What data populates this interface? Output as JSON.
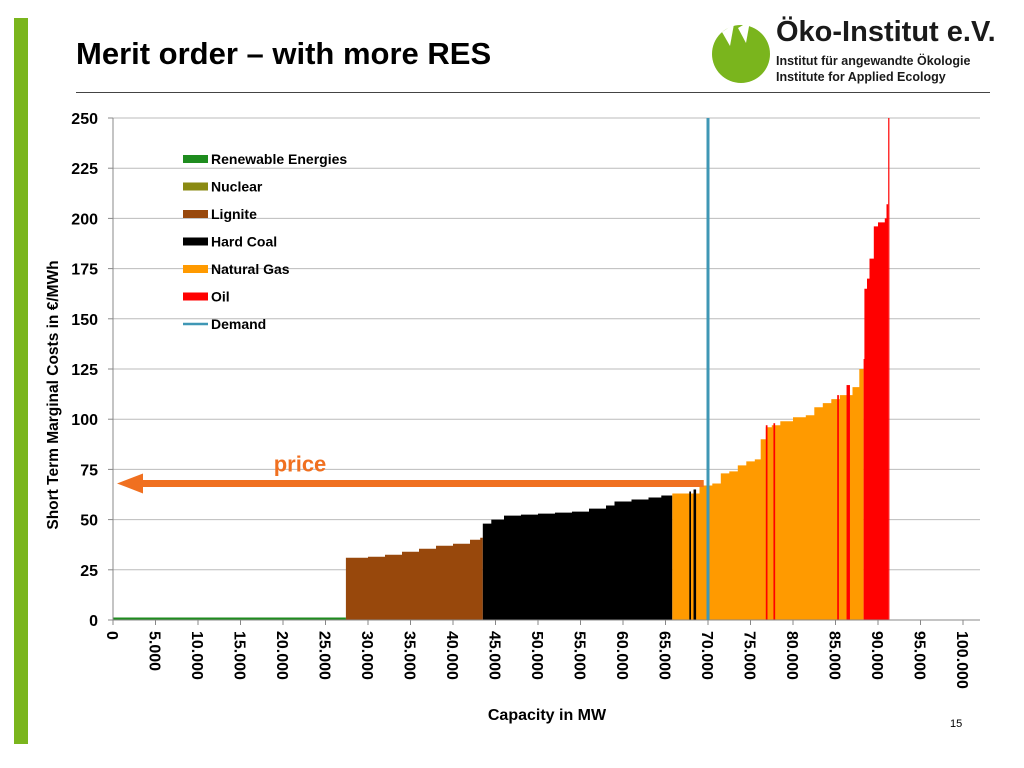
{
  "page": {
    "title": "Merit order – with more RES",
    "page_number": "15",
    "side_url": "www.oeko.de"
  },
  "logo": {
    "name": "Öko-Institut e.V.",
    "line1": "Institut für angewandte Ökologie",
    "line2": "Institute for Applied Ecology",
    "brand_color": "#7ab51d"
  },
  "colors": {
    "renewable": "#1e8c1e",
    "nuclear": "#8a8a12",
    "lignite": "#98480c",
    "hard_coal": "#000000",
    "natural_gas": "#ff9a00",
    "oil": "#ff0000",
    "demand": "#3f97b5",
    "price_arrow": "#f07020",
    "gridline": "#bbbbbb"
  },
  "chart_data": {
    "type": "area",
    "title": "",
    "xlabel": "Capacity in MW",
    "ylabel": "Short Term Marginal Costs in €/MWh",
    "xlim": [
      0,
      102000
    ],
    "ylim": [
      0,
      250
    ],
    "x_ticks": [
      0,
      5000,
      10000,
      15000,
      20000,
      25000,
      30000,
      35000,
      40000,
      45000,
      50000,
      55000,
      60000,
      65000,
      70000,
      75000,
      80000,
      85000,
      90000,
      95000,
      100000
    ],
    "x_tick_labels": [
      "0",
      "5.000",
      "10.000",
      "15.000",
      "20.000",
      "25.000",
      "30.000",
      "35.000",
      "40.000",
      "45.000",
      "50.000",
      "55.000",
      "60.000",
      "65.000",
      "70.000",
      "75.000",
      "80.000",
      "85.000",
      "90.000",
      "95.000",
      "100.000"
    ],
    "y_ticks": [
      0,
      25,
      50,
      75,
      100,
      125,
      150,
      175,
      200,
      225,
      250
    ],
    "y_tick_labels": [
      "0",
      "25",
      "50",
      "75",
      "100",
      "125",
      "150",
      "175",
      "200",
      "225",
      "250"
    ],
    "grid": "horizontal",
    "legend_position": "top-left",
    "legend": [
      {
        "name": "Renewable Energies",
        "color": "#1e8c1e",
        "style": "bar"
      },
      {
        "name": "Nuclear",
        "color": "#8a8a12",
        "style": "bar"
      },
      {
        "name": "Lignite",
        "color": "#98480c",
        "style": "bar"
      },
      {
        "name": "Hard Coal",
        "color": "#000000",
        "style": "bar"
      },
      {
        "name": "Natural Gas",
        "color": "#ff9a00",
        "style": "bar"
      },
      {
        "name": "Oil",
        "color": "#ff0000",
        "style": "bar"
      },
      {
        "name": "Demand",
        "color": "#3f97b5",
        "style": "line"
      }
    ],
    "series": [
      {
        "name": "Renewable Energies",
        "color": "#1e8c1e",
        "points": [
          [
            0,
            0.5
          ],
          [
            27400,
            0.5
          ]
        ]
      },
      {
        "name": "Lignite",
        "color": "#98480c",
        "points": [
          [
            27400,
            31
          ],
          [
            30000,
            31.5
          ],
          [
            32000,
            32.5
          ],
          [
            34000,
            34
          ],
          [
            36000,
            35.5
          ],
          [
            38000,
            37
          ],
          [
            40000,
            38
          ],
          [
            42000,
            40
          ],
          [
            43200,
            41
          ],
          [
            43500,
            43
          ]
        ]
      },
      {
        "name": "Hard Coal",
        "color": "#000000",
        "points": [
          [
            43500,
            48
          ],
          [
            44500,
            50
          ],
          [
            46000,
            52
          ],
          [
            48000,
            52.5
          ],
          [
            50000,
            53
          ],
          [
            52000,
            53.5
          ],
          [
            54000,
            54
          ],
          [
            56000,
            55.5
          ],
          [
            58000,
            57
          ],
          [
            59000,
            59
          ],
          [
            61000,
            60
          ],
          [
            63000,
            61
          ],
          [
            64500,
            62
          ],
          [
            65800,
            63
          ]
        ]
      },
      {
        "name": "Natural Gas",
        "color": "#ff9a00",
        "points": [
          [
            65800,
            63
          ],
          [
            67000,
            63
          ],
          [
            68000,
            63
          ],
          [
            69000,
            67
          ],
          [
            70500,
            68
          ],
          [
            71500,
            73
          ],
          [
            72500,
            74
          ],
          [
            73500,
            77
          ],
          [
            74500,
            79
          ],
          [
            75500,
            80
          ],
          [
            76200,
            90
          ],
          [
            76800,
            96
          ],
          [
            77500,
            97
          ],
          [
            78500,
            99
          ],
          [
            80000,
            101
          ],
          [
            81500,
            102
          ],
          [
            82500,
            106
          ],
          [
            83500,
            108
          ],
          [
            84500,
            110
          ],
          [
            85500,
            112
          ],
          [
            87000,
            116
          ],
          [
            87800,
            125
          ],
          [
            88300,
            130
          ]
        ]
      },
      {
        "name": "Oil",
        "color": "#ff0000",
        "points": [
          [
            88300,
            130
          ],
          [
            88400,
            165
          ],
          [
            88700,
            170
          ],
          [
            89000,
            180
          ],
          [
            89500,
            196
          ],
          [
            90000,
            198
          ],
          [
            90800,
            200
          ],
          [
            91000,
            207
          ],
          [
            91200,
            207
          ]
        ]
      }
    ],
    "series_bands": [
      {
        "name": "Hard Coal",
        "x0": 67800,
        "x1": 68000,
        "y": 64
      },
      {
        "name": "Hard Coal",
        "x0": 68300,
        "x1": 68600,
        "y": 65
      },
      {
        "name": "Oil",
        "x0": 76800,
        "x1": 77000,
        "y": 97
      },
      {
        "name": "Oil",
        "x0": 77700,
        "x1": 77900,
        "y": 98
      },
      {
        "name": "Oil",
        "x0": 85200,
        "x1": 85400,
        "y": 112
      },
      {
        "name": "Oil",
        "x0": 86300,
        "x1": 86700,
        "y": 117
      },
      {
        "name": "Oil",
        "x0": 91200,
        "x1": 91300,
        "y": 250
      }
    ],
    "demand": {
      "name": "Demand",
      "x": 70000
    },
    "annotations": [
      {
        "text": "price",
        "x_from": 69500,
        "x_to": 0,
        "y": 68
      }
    ]
  }
}
